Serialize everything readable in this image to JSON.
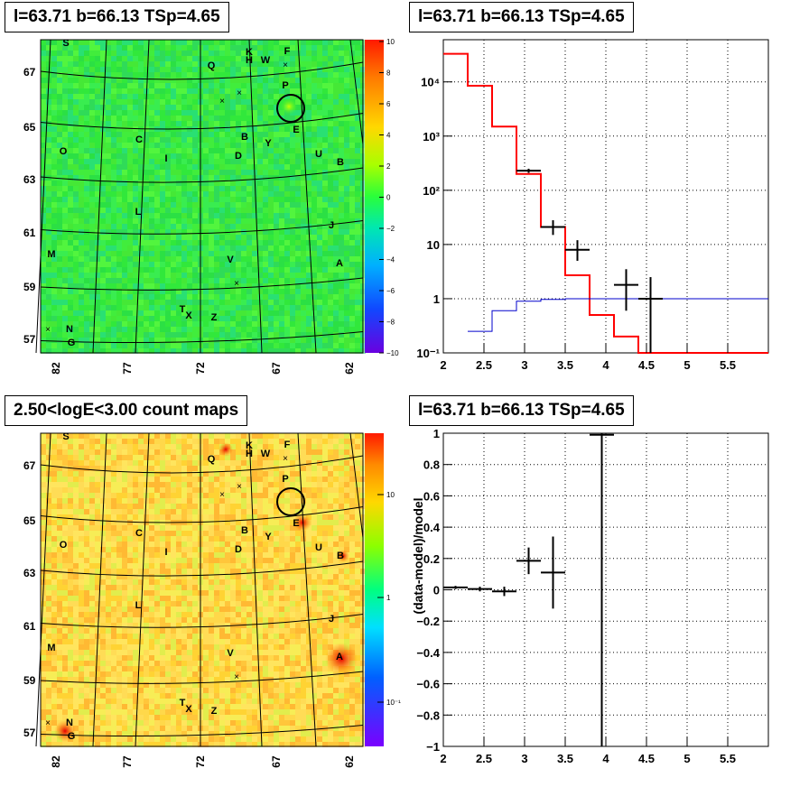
{
  "panels": {
    "top_left_title": "l=63.71 b=66.13 TSp=4.65",
    "top_right_title": "l=63.71 b=66.13 TSp=4.65",
    "bottom_left_title": "2.50<logE<3.00 count maps",
    "bottom_right_title": "l=63.71 b=66.13 TSp=4.65"
  },
  "map_axes": {
    "x_ticks": [
      "82",
      "77",
      "72",
      "67",
      "62"
    ],
    "y_ticks": [
      "67",
      "65",
      "63",
      "61",
      "59",
      "57"
    ]
  },
  "colorbar_top": {
    "ticks": [
      "10",
      "8",
      "6",
      "4",
      "2",
      "0",
      "−2",
      "−4",
      "−6",
      "−8",
      "−10"
    ]
  },
  "colorbar_bottom": {
    "ticks": [
      "10",
      "1",
      "10⁻¹"
    ]
  },
  "sources": [
    "S",
    "Q",
    "K",
    "H",
    "W",
    "F",
    "P",
    "E",
    "C",
    "B",
    "Y",
    "U",
    "O",
    "I",
    "D",
    "B",
    "L",
    "J",
    "M",
    "V",
    "A",
    "T",
    "X",
    "Z",
    "N",
    "G"
  ],
  "chart_data": [
    {
      "type": "line",
      "title": "l=63.71 b=66.13 TSp=4.65",
      "xlabel": "",
      "ylabel": "",
      "xlim": [
        2,
        6
      ],
      "ylim": [
        0.1,
        60000
      ],
      "log_y": true,
      "grid": true,
      "x_ticks": [
        "2",
        "2.5",
        "3",
        "3.5",
        "4",
        "4.5",
        "5",
        "5.5"
      ],
      "y_ticks": [
        "10⁻¹",
        "1",
        "10",
        "10²",
        "10³",
        "10⁴"
      ],
      "series": [
        {
          "color": "#ff0000",
          "step_edges": [
            2.0,
            2.3,
            2.6,
            2.9,
            3.2,
            3.5,
            3.8,
            4.1,
            4.4,
            6.0
          ],
          "values": [
            33000,
            8500,
            1500,
            200,
            21,
            2.7,
            0.5,
            0.2,
            0.1
          ]
        },
        {
          "color": "#0000cc",
          "step_edges": [
            2.3,
            2.6,
            2.9,
            3.2,
            3.5,
            3.8,
            4.1,
            4.4,
            6.0
          ],
          "values": [
            0.25,
            0.6,
            0.9,
            0.97,
            1.0,
            1.0,
            1.0,
            1.0
          ]
        },
        {
          "color": "#000000",
          "points": [
            {
              "x": 3.05,
              "y": 230,
              "xerr": 0.15,
              "ylo": 210,
              "yhi": 250
            },
            {
              "x": 3.35,
              "y": 21,
              "xerr": 0.15,
              "ylo": 15,
              "yhi": 28
            },
            {
              "x": 3.65,
              "y": 8,
              "xerr": 0.15,
              "ylo": 5,
              "yhi": 12
            },
            {
              "x": 4.25,
              "y": 1.8,
              "xerr": 0.15,
              "ylo": 0.6,
              "yhi": 3.5
            },
            {
              "x": 4.55,
              "y": 1.0,
              "xerr": 0.15,
              "ylo": 0.1,
              "yhi": 2.5
            }
          ]
        }
      ]
    },
    {
      "type": "scatter",
      "title": "l=63.71 b=66.13 TSp=4.65",
      "xlabel": "",
      "ylabel": "(data-model)/model",
      "xlim": [
        2,
        6
      ],
      "ylim": [
        -1,
        1
      ],
      "grid": true,
      "x_ticks": [
        "2",
        "2.5",
        "3",
        "3.5",
        "4",
        "4.5",
        "5",
        "5.5"
      ],
      "y_ticks": [
        "−1",
        "−0.8",
        "−0.6",
        "−0.4",
        "−0.2",
        "0",
        "0.2",
        "0.4",
        "0.6",
        "0.8",
        "1"
      ],
      "points": [
        {
          "x": 2.15,
          "y": 0.015,
          "xerr": 0.15,
          "ylo": 0.005,
          "yhi": 0.025
        },
        {
          "x": 2.45,
          "y": 0.005,
          "xerr": 0.15,
          "ylo": -0.01,
          "yhi": 0.02
        },
        {
          "x": 2.75,
          "y": -0.01,
          "xerr": 0.15,
          "ylo": -0.04,
          "yhi": 0.02
        },
        {
          "x": 3.05,
          "y": 0.185,
          "xerr": 0.15,
          "ylo": 0.1,
          "yhi": 0.27
        },
        {
          "x": 3.35,
          "y": 0.11,
          "xerr": 0.15,
          "ylo": -0.12,
          "yhi": 0.34
        },
        {
          "x": 3.95,
          "y": 0.99,
          "xerr": 0.15,
          "ylo": -1,
          "yhi": 1
        }
      ]
    }
  ]
}
